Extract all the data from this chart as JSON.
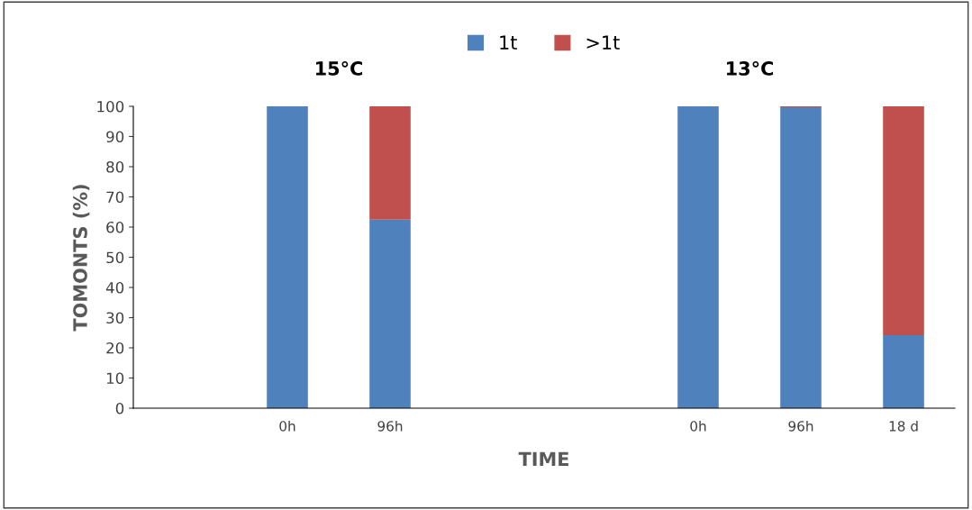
{
  "chart_data": {
    "type": "bar",
    "stacked": true,
    "categories": [
      null,
      "0h",
      "96h",
      null,
      null,
      "0h",
      "96h",
      "18 d"
    ],
    "series": [
      {
        "name": "1t",
        "color": "#4f81bd",
        "values": [
          null,
          100,
          62.5,
          null,
          null,
          100,
          99.7,
          24.2
        ]
      },
      {
        "name": ">1t",
        "color": "#c0504d",
        "values": [
          null,
          0,
          37.5,
          null,
          null,
          0,
          0.3,
          75.8
        ]
      }
    ],
    "xlabel": "TIME",
    "ylabel": "TOMONTS (%)",
    "annotations": [
      "15°C",
      "13°C"
    ],
    "ylim": [
      0,
      100
    ],
    "yticks": [
      0,
      10,
      20,
      30,
      40,
      50,
      60,
      70,
      80,
      90,
      100
    ],
    "grid": false,
    "legend": "top"
  }
}
